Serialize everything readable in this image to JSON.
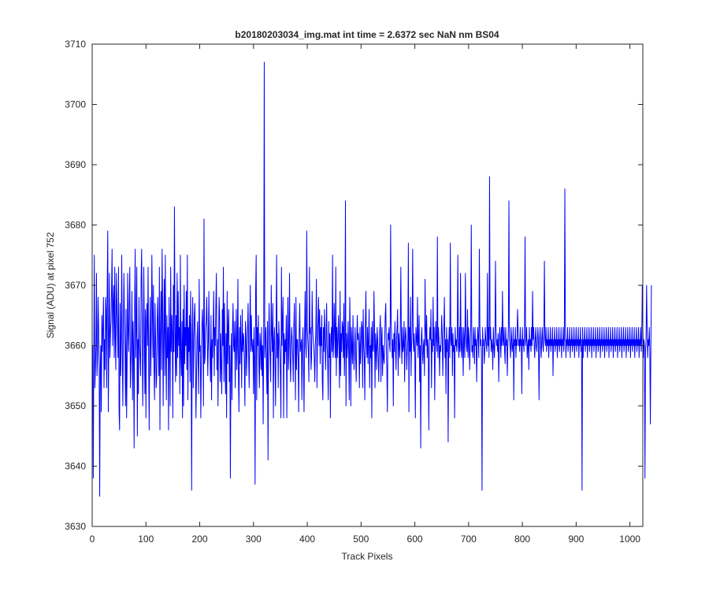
{
  "chart_data": {
    "type": "line",
    "title": "b20180203034_img.mat int time = 2.6372 sec  NaN nm BS04",
    "xlabel": "Track Pixels",
    "ylabel": "Signal (ADU) at pixel 752",
    "xlim": [
      0,
      1024
    ],
    "ylim": [
      3630,
      3710
    ],
    "xticks": [
      0,
      100,
      200,
      300,
      400,
      500,
      600,
      700,
      800,
      900,
      1000
    ],
    "yticks": [
      3630,
      3640,
      3650,
      3660,
      3670,
      3680,
      3690,
      3700,
      3710
    ],
    "grid": false,
    "series": [
      {
        "color": "#0000ff",
        "x_start": 1,
        "x_step": 1,
        "values": [
          3660,
          3638,
          3658,
          3675,
          3653,
          3656,
          3660,
          3672,
          3655,
          3658,
          3668,
          3663,
          3657,
          3635,
          3656,
          3660,
          3649,
          3665,
          3659,
          3663,
          3668,
          3653,
          3661,
          3656,
          3668,
          3666,
          3653,
          3670,
          3679,
          3649,
          3660,
          3672,
          3658,
          3662,
          3664,
          3669,
          3676,
          3660,
          3667,
          3670,
          3658,
          3673,
          3661,
          3656,
          3672,
          3667,
          3663,
          3658,
          3673,
          3649,
          3646,
          3667,
          3655,
          3661,
          3675,
          3659,
          3650,
          3662,
          3672,
          3664,
          3660,
          3650,
          3666,
          3648,
          3657,
          3672,
          3662,
          3659,
          3668,
          3673,
          3653,
          3657,
          3661,
          3669,
          3651,
          3664,
          3659,
          3643,
          3667,
          3676,
          3658,
          3663,
          3673,
          3645,
          3661,
          3652,
          3668,
          3660,
          3658,
          3655,
          3671,
          3676,
          3665,
          3650,
          3658,
          3673,
          3662,
          3652,
          3666,
          3648,
          3664,
          3667,
          3660,
          3673,
          3658,
          3646,
          3660,
          3668,
          3655,
          3662,
          3675,
          3666,
          3658,
          3670,
          3656,
          3651,
          3667,
          3661,
          3653,
          3655,
          3664,
          3668,
          3660,
          3655,
          3673,
          3646,
          3662,
          3669,
          3656,
          3676,
          3667,
          3650,
          3662,
          3671,
          3655,
          3675,
          3660,
          3651,
          3665,
          3658,
          3663,
          3646,
          3668,
          3660,
          3650,
          3673,
          3659,
          3665,
          3662,
          3648,
          3670,
          3659,
          3683,
          3664,
          3654,
          3665,
          3655,
          3672,
          3658,
          3669,
          3660,
          3663,
          3652,
          3675,
          3658,
          3655,
          3664,
          3648,
          3666,
          3650,
          3670,
          3657,
          3663,
          3660,
          3669,
          3656,
          3675,
          3651,
          3663,
          3659,
          3665,
          3654,
          3669,
          3660,
          3636,
          3662,
          3668,
          3653,
          3660,
          3665,
          3667,
          3658,
          3648,
          3655,
          3661,
          3664,
          3657,
          3652,
          3671,
          3659,
          3660,
          3648,
          3657,
          3663,
          3666,
          3662,
          3650,
          3681,
          3657,
          3658,
          3663,
          3664,
          3668,
          3662,
          3655,
          3660,
          3669,
          3661,
          3659,
          3654,
          3665,
          3651,
          3661,
          3658,
          3663,
          3669,
          3655,
          3663,
          3660,
          3667,
          3672,
          3656,
          3661,
          3650,
          3660,
          3668,
          3665,
          3654,
          3662,
          3656,
          3652,
          3666,
          3660,
          3673,
          3654,
          3667,
          3659,
          3652,
          3662,
          3648,
          3669,
          3657,
          3663,
          3666,
          3654,
          3660,
          3638,
          3656,
          3662,
          3651,
          3663,
          3667,
          3660,
          3659,
          3664,
          3653,
          3661,
          3666,
          3656,
          3660,
          3671,
          3655,
          3649,
          3663,
          3657,
          3665,
          3660,
          3653,
          3666,
          3659,
          3662,
          3661,
          3657,
          3650,
          3664,
          3662,
          3655,
          3659,
          3663,
          3667,
          3658,
          3653,
          3663,
          3670,
          3659,
          3665,
          3660,
          3659,
          3661,
          3652,
          3663,
          3658,
          3637,
          3669,
          3675,
          3651,
          3663,
          3660,
          3665,
          3657,
          3653,
          3662,
          3660,
          3656,
          3663,
          3655,
          3660,
          3647,
          3662,
          3707,
          3658,
          3661,
          3663,
          3657,
          3652,
          3664,
          3641,
          3660,
          3667,
          3661,
          3658,
          3654,
          3670,
          3662,
          3659,
          3667,
          3648,
          3661,
          3663,
          3657,
          3650,
          3662,
          3675,
          3658,
          3662,
          3653,
          3664,
          3661,
          3659,
          3655,
          3648,
          3673,
          3660,
          3664,
          3668,
          3648,
          3662,
          3657,
          3661,
          3659,
          3665,
          3648,
          3661,
          3668,
          3656,
          3660,
          3672,
          3658,
          3654,
          3660,
          3663,
          3661,
          3658,
          3654,
          3663,
          3667,
          3660,
          3651,
          3668,
          3656,
          3661,
          3661,
          3658,
          3649,
          3662,
          3667,
          3659,
          3660,
          3661,
          3651,
          3660,
          3663,
          3656,
          3649,
          3662,
          3669,
          3660,
          3658,
          3679,
          3663,
          3661,
          3659,
          3654,
          3673,
          3662,
          3663,
          3656,
          3658,
          3669,
          3663,
          3661,
          3660,
          3658,
          3654,
          3660,
          3663,
          3671,
          3653,
          3661,
          3664,
          3668,
          3660,
          3666,
          3657,
          3663,
          3660,
          3665,
          3654,
          3651,
          3663,
          3659,
          3666,
          3662,
          3656,
          3661,
          3667,
          3660,
          3657,
          3651,
          3664,
          3658,
          3662,
          3648,
          3661,
          3663,
          3659,
          3675,
          3658,
          3660,
          3667,
          3662,
          3658,
          3673,
          3655,
          3663,
          3658,
          3661,
          3665,
          3660,
          3653,
          3669,
          3655,
          3662,
          3659,
          3664,
          3663,
          3658,
          3667,
          3655,
          3660,
          3684,
          3650,
          3662,
          3658,
          3660,
          3664,
          3659,
          3651,
          3668,
          3662,
          3650,
          3663,
          3660,
          3657,
          3665,
          3659,
          3656,
          3660,
          3663,
          3658,
          3654,
          3660,
          3665,
          3661,
          3662,
          3660,
          3653,
          3663,
          3657,
          3660,
          3664,
          3663,
          3653,
          3666,
          3660,
          3658,
          3651,
          3663,
          3669,
          3660,
          3658,
          3663,
          3657,
          3661,
          3666,
          3653,
          3660,
          3658,
          3663,
          3648,
          3664,
          3660,
          3659,
          3669,
          3663,
          3653,
          3662,
          3660,
          3656,
          3663,
          3661,
          3658,
          3654,
          3660,
          3663,
          3665,
          3654,
          3661,
          3663,
          3655,
          3660,
          3658,
          3657,
          3661,
          3665,
          3667,
          3660,
          3656,
          3649,
          3662,
          3661,
          3663,
          3660,
          3659,
          3680,
          3664,
          3661,
          3658,
          3661,
          3650,
          3662,
          3659,
          3664,
          3660,
          3656,
          3661,
          3663,
          3666,
          3655,
          3662,
          3660,
          3658,
          3663,
          3673,
          3661,
          3657,
          3663,
          3659,
          3660,
          3664,
          3654,
          3661,
          3663,
          3661,
          3656,
          3659,
          3661,
          3677,
          3649,
          3663,
          3659,
          3668,
          3655,
          3660,
          3663,
          3676,
          3661,
          3659,
          3662,
          3658,
          3648,
          3663,
          3661,
          3660,
          3668,
          3658,
          3661,
          3665,
          3654,
          3660,
          3643,
          3661,
          3663,
          3659,
          3657,
          3660,
          3661,
          3655,
          3671,
          3663,
          3660,
          3665,
          3658,
          3661,
          3659,
          3646,
          3660,
          3663,
          3661,
          3666,
          3653,
          3661,
          3659,
          3668,
          3660,
          3663,
          3651,
          3660,
          3664,
          3661,
          3659,
          3678,
          3658,
          3663,
          3661,
          3655,
          3660,
          3659,
          3661,
          3665,
          3662,
          3655,
          3660,
          3663,
          3668,
          3658,
          3661,
          3652,
          3663,
          3659,
          3661,
          3644,
          3660,
          3663,
          3658,
          3677,
          3661,
          3660,
          3663,
          3655,
          3662,
          3659,
          3660,
          3648,
          3663,
          3660,
          3661,
          3659,
          3662,
          3675,
          3660,
          3658,
          3663,
          3659,
          3672,
          3660,
          3658,
          3663,
          3660,
          3655,
          3663,
          3661,
          3658,
          3672,
          3663,
          3660,
          3659,
          3666,
          3658,
          3663,
          3661,
          3656,
          3660,
          3663,
          3680,
          3659,
          3660,
          3658,
          3663,
          3661,
          3657,
          3663,
          3660,
          3661,
          3654,
          3660,
          3663,
          3661,
          3658,
          3676,
          3663,
          3660,
          3661,
          3658,
          3636,
          3663,
          3660,
          3661,
          3657,
          3659,
          3663,
          3661,
          3660,
          3659,
          3672,
          3660,
          3663,
          3658,
          3688,
          3661,
          3663,
          3659,
          3661,
          3660,
          3656,
          3663,
          3660,
          3658,
          3661,
          3674,
          3663,
          3660,
          3661,
          3659,
          3662,
          3654,
          3660,
          3663,
          3661,
          3658,
          3663,
          3660,
          3669,
          3661,
          3660,
          3663,
          3659,
          3657,
          3663,
          3660,
          3661,
          3655,
          3660,
          3663,
          3684,
          3661,
          3660,
          3658,
          3663,
          3661,
          3659,
          3660,
          3663,
          3651,
          3661,
          3660,
          3663,
          3658,
          3661,
          3660,
          3666,
          3663,
          3660,
          3661,
          3659,
          3663,
          3660,
          3661,
          3652,
          3663,
          3660,
          3661,
          3659,
          3663,
          3678,
          3660,
          3661,
          3663,
          3658,
          3660,
          3661,
          3656,
          3663,
          3660,
          3661,
          3659,
          3663,
          3660,
          3669,
          3661,
          3663,
          3660,
          3658,
          3661,
          3663,
          3660,
          3659,
          3661,
          3663,
          3660,
          3651,
          3661,
          3663,
          3660,
          3658,
          3661,
          3663,
          3660,
          3659,
          3663,
          3674,
          3661,
          3660,
          3663,
          3659,
          3661,
          3660,
          3663,
          3658,
          3661,
          3660,
          3663,
          3659,
          3661,
          3660,
          3663,
          3655,
          3661,
          3660,
          3663,
          3659,
          3661,
          3660,
          3663,
          3658,
          3661,
          3660,
          3663,
          3659,
          3661,
          3660,
          3663,
          3658,
          3661,
          3660,
          3663,
          3659,
          3661,
          3686,
          3663,
          3658,
          3661,
          3660,
          3663,
          3659,
          3661,
          3660,
          3663,
          3658,
          3661,
          3660,
          3663,
          3659,
          3661,
          3660,
          3663,
          3658,
          3661,
          3660,
          3663,
          3659,
          3661,
          3660,
          3663,
          3658,
          3661,
          3660,
          3663,
          3659,
          3661,
          3636,
          3663,
          3658,
          3661,
          3660,
          3663,
          3659,
          3661,
          3660,
          3663,
          3658,
          3661,
          3660,
          3663,
          3659,
          3661,
          3660,
          3663,
          3658,
          3661,
          3660,
          3663,
          3659,
          3661,
          3660,
          3663,
          3658,
          3661,
          3660,
          3663,
          3659,
          3661,
          3660,
          3663,
          3658,
          3661,
          3660,
          3663,
          3659,
          3661,
          3660,
          3663,
          3658,
          3661,
          3660,
          3663,
          3659,
          3661,
          3660,
          3663,
          3658,
          3661,
          3660,
          3663,
          3659,
          3661,
          3660,
          3663,
          3658,
          3661,
          3660,
          3663,
          3659,
          3661,
          3660,
          3663,
          3658,
          3661,
          3660,
          3663,
          3659,
          3661,
          3660,
          3663,
          3658,
          3661,
          3660,
          3663,
          3659,
          3661,
          3660,
          3663,
          3658,
          3661,
          3660,
          3663,
          3659,
          3661,
          3660,
          3663,
          3658,
          3661,
          3660,
          3663,
          3659,
          3661,
          3660,
          3663,
          3658,
          3661,
          3660,
          3663,
          3659,
          3661,
          3660,
          3663,
          3658,
          3661,
          3660,
          3663,
          3659,
          3661,
          3670,
          3663,
          3658,
          3661,
          3660,
          3638,
          3659,
          3661,
          3670,
          3663,
          3658,
          3661,
          3660,
          3663,
          3659,
          3647,
          3660,
          3670
        ]
      }
    ]
  }
}
